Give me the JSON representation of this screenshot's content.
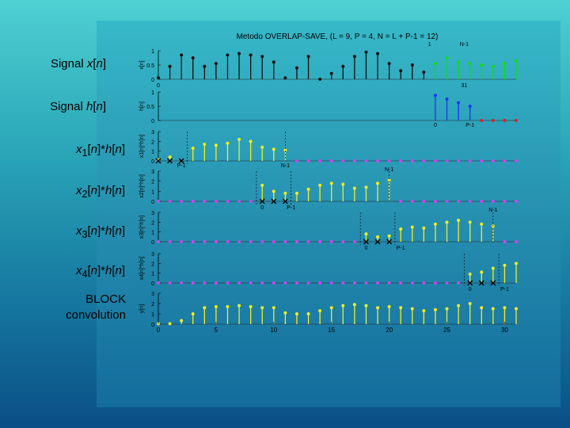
{
  "labels": {
    "x": "Signal x[n]",
    "h": "Signal h[n]",
    "c1": "x1[n]*h[n]",
    "c2": "x2[n]*h[n]",
    "c3": "x3[n]*h[n]",
    "c4": "x4[n]*h[n]",
    "block1": "BLOCK",
    "block2": "convolution"
  },
  "chart_data": {
    "type": "stem",
    "title": "Metodo OVERLAP-SAVE, (L = 9, P = 4, N = L + P-1 = 12)",
    "xlim": [
      0,
      31
    ],
    "xticks": [
      0,
      5,
      10,
      15,
      20,
      25,
      30
    ],
    "panels": [
      {
        "ylabel": "x[n]",
        "ylim": [
          0,
          1
        ],
        "yticks": [
          "0",
          "0.5",
          "1"
        ],
        "series": [
          {
            "name": "x",
            "color": "#111111",
            "x": [
              0,
              1,
              2,
              3,
              4,
              5,
              6,
              7,
              8,
              9,
              10,
              11,
              12,
              13,
              14,
              15,
              16,
              17,
              18,
              19,
              20,
              21,
              22,
              23
            ],
            "y": [
              0.05,
              0.45,
              0.85,
              0.75,
              0.45,
              0.55,
              0.85,
              0.9,
              0.85,
              0.8,
              0.6,
              0.05,
              0.4,
              0.8,
              0.0,
              0.2,
              0.45,
              0.8,
              0.95,
              0.9,
              0.55,
              0.3,
              0.5,
              0.25
            ]
          },
          {
            "name": "x-tail",
            "color": "#11dd11",
            "x": [
              24,
              25,
              26,
              27,
              28,
              29,
              30,
              31
            ],
            "y": [
              0.55,
              0.75,
              0.6,
              0.55,
              0.5,
              0.45,
              0.55,
              0.65
            ]
          }
        ],
        "annotations": [
          "0",
          "31",
          "1",
          "N-1"
        ]
      },
      {
        "ylabel": "h[n]",
        "ylim": [
          0,
          1
        ],
        "yticks": [
          "0",
          "0.5",
          "1"
        ],
        "series": [
          {
            "name": "h",
            "color": "#1a33ff",
            "x": [
              24,
              25,
              26,
              27
            ],
            "y": [
              0.88,
              0.75,
              0.62,
              0.5
            ]
          },
          {
            "name": "zeros",
            "color": "#dd2222",
            "x": [
              28,
              29,
              30,
              31
            ],
            "y": [
              0,
              0,
              0,
              0
            ]
          }
        ],
        "annotations": [
          "0",
          "P-1"
        ]
      },
      {
        "ylabel": "x1[n]*h[n]",
        "ylim": [
          0,
          3
        ],
        "yticks": [
          "0",
          "1",
          "2",
          "3"
        ],
        "series": [
          {
            "name": "y1",
            "color": "#eeee22",
            "x": [
              0,
              1,
              3,
              4,
              5,
              6,
              7,
              8,
              9,
              10,
              11
            ],
            "y": [
              0.1,
              0.4,
              1.3,
              1.7,
              1.6,
              1.8,
              2.2,
              2.0,
              1.4,
              1.2,
              1.1
            ]
          },
          {
            "name": "zeros",
            "color": "#cc44ee",
            "x": [
              12,
              13,
              14,
              15,
              16,
              17,
              18,
              19,
              20,
              21,
              22,
              23,
              24,
              25,
              26,
              27,
              28,
              29,
              30,
              31
            ],
            "y": [
              0,
              0,
              0,
              0,
              0,
              0,
              0,
              0,
              0,
              0,
              0,
              0,
              0,
              0,
              0,
              0,
              0,
              0,
              0,
              0
            ]
          }
        ],
        "discarded": [
          0,
          1,
          2
        ],
        "annotations": [
          "P-1",
          "N-1"
        ]
      },
      {
        "ylabel": "x2[n]*h[n]",
        "ylim": [
          0,
          3
        ],
        "yticks": [
          "0",
          "1",
          "2",
          "3"
        ],
        "series": [
          {
            "name": "y2",
            "color": "#eeee22",
            "x": [
              9,
              10,
              11,
              12,
              13,
              14,
              15,
              16,
              17,
              18,
              19,
              20
            ],
            "y": [
              1.6,
              1.0,
              0.8,
              0.8,
              1.2,
              1.6,
              1.8,
              1.7,
              1.3,
              1.4,
              1.8,
              2.1
            ]
          },
          {
            "name": "zeros",
            "color": "#cc44ee",
            "x": [
              0,
              1,
              2,
              3,
              4,
              5,
              6,
              7,
              8,
              21,
              22,
              23,
              24,
              25,
              26,
              27,
              28,
              29,
              30,
              31
            ],
            "y": [
              0,
              0,
              0,
              0,
              0,
              0,
              0,
              0,
              0,
              0,
              0,
              0,
              0,
              0,
              0,
              0,
              0,
              0,
              0,
              0
            ]
          }
        ],
        "discarded": [
          9,
          10,
          11
        ],
        "annotations": [
          "0",
          "P-1",
          "N-1"
        ]
      },
      {
        "ylabel": "x3[n]*h[n]",
        "ylim": [
          0,
          3
        ],
        "yticks": [
          "0",
          "1",
          "2",
          "3"
        ],
        "series": [
          {
            "name": "y3",
            "color": "#eeee22",
            "x": [
              18,
              19,
              20,
              21,
              22,
              23,
              24,
              25,
              26,
              27,
              28,
              29
            ],
            "y": [
              0.8,
              0.5,
              0.6,
              1.3,
              1.5,
              1.4,
              1.8,
              2.0,
              2.2,
              2.0,
              1.8,
              1.6
            ]
          },
          {
            "name": "zeros",
            "color": "#cc44ee",
            "x": [
              0,
              1,
              2,
              3,
              4,
              5,
              6,
              7,
              8,
              9,
              10,
              11,
              12,
              13,
              14,
              15,
              16,
              17,
              30,
              31
            ],
            "y": [
              0,
              0,
              0,
              0,
              0,
              0,
              0,
              0,
              0,
              0,
              0,
              0,
              0,
              0,
              0,
              0,
              0,
              0,
              0,
              0
            ]
          }
        ],
        "discarded": [
          18,
          19,
          20
        ],
        "annotations": [
          "0",
          "P-1",
          "N-1"
        ]
      },
      {
        "ylabel": "x4[n]*h[n]",
        "ylim": [
          0,
          3
        ],
        "yticks": [
          "0",
          "1",
          "2",
          "3"
        ],
        "series": [
          {
            "name": "y4",
            "color": "#eeee22",
            "x": [
              27,
              28,
              29,
              30,
              31
            ],
            "y": [
              0.9,
              1.1,
              1.5,
              1.8,
              2.0
            ]
          },
          {
            "name": "zeros",
            "color": "#cc44ee",
            "x": [
              0,
              1,
              2,
              3,
              4,
              5,
              6,
              7,
              8,
              9,
              10,
              11,
              12,
              13,
              14,
              15,
              16,
              17,
              18,
              19,
              20,
              21,
              22,
              23,
              24,
              25,
              26
            ],
            "y": [
              0,
              0,
              0,
              0,
              0,
              0,
              0,
              0,
              0,
              0,
              0,
              0,
              0,
              0,
              0,
              0,
              0,
              0,
              0,
              0,
              0,
              0,
              0,
              0,
              0,
              0,
              0
            ]
          }
        ],
        "discarded": [
          27,
          28,
          29
        ],
        "annotations": [
          "0",
          "P-1"
        ]
      },
      {
        "ylabel": "y[n]",
        "ylim": [
          0,
          3
        ],
        "yticks": [
          "0",
          "1",
          "2",
          "3"
        ],
        "series": [
          {
            "name": "y",
            "color": "#eeee22",
            "x": [
              0,
              1,
              2,
              3,
              4,
              5,
              6,
              7,
              8,
              9,
              10,
              11,
              12,
              13,
              14,
              15,
              16,
              17,
              18,
              19,
              20,
              21,
              22,
              23,
              24,
              25,
              26,
              27,
              28,
              29,
              30,
              31
            ],
            "y": [
              0.05,
              0.05,
              0.35,
              1.0,
              1.6,
              1.7,
              1.7,
              1.8,
              1.7,
              1.6,
              1.6,
              1.1,
              1.0,
              1.0,
              1.3,
              1.6,
              1.8,
              1.9,
              1.8,
              1.6,
              1.7,
              1.6,
              1.5,
              1.3,
              1.4,
              1.5,
              1.8,
              2.0,
              1.6,
              1.5,
              1.6,
              1.5
            ]
          }
        ],
        "annotations": []
      }
    ]
  }
}
